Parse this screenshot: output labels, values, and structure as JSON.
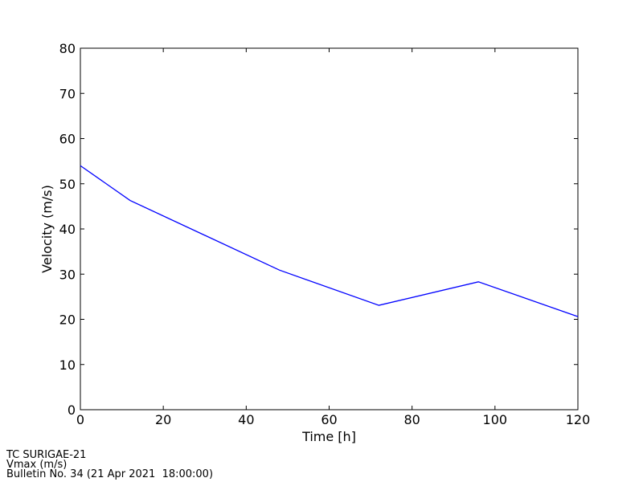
{
  "chart_data": {
    "type": "line",
    "x_label": "Time [h]",
    "y_label": "Velocity (m/s)",
    "x": [
      0,
      12,
      48,
      72,
      96,
      120
    ],
    "series": [
      {
        "name": "Vmax",
        "color": "#0000ff",
        "values": [
          54,
          46.3,
          30.9,
          23.1,
          28.3,
          20.6
        ]
      }
    ],
    "xlim": [
      0,
      120
    ],
    "xticks": [
      0,
      20,
      40,
      60,
      80,
      100,
      120
    ],
    "ylim": [
      0,
      80
    ],
    "yticks": [
      0,
      10,
      20,
      30,
      40,
      50,
      60,
      70,
      80
    ],
    "grid": false
  },
  "footer": [
    "TC SURIGAE-21",
    "Vmax (m/s)",
    "Bulletin No. 34 (21 Apr 2021  18:00:00)"
  ]
}
